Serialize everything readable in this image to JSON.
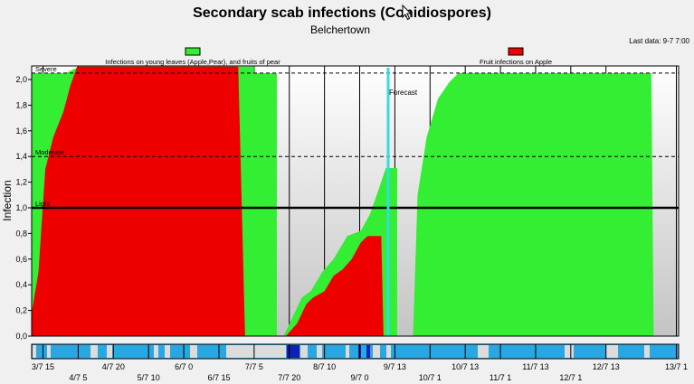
{
  "chart_data": {
    "type": "area",
    "title": "Secondary scab infections (Conidiospores)",
    "subtitle": "Belchertown",
    "last_data": "Last data: 9-7 7:00",
    "ylabel": "Infection",
    "ylim": [
      0,
      2.1
    ],
    "y_ticks": [
      "0,0",
      "0,2",
      "0,4",
      "0,6",
      "0,8",
      "1,0",
      "1,2",
      "1,4",
      "1,6",
      "1,8",
      "2,0"
    ],
    "x_ticks_top": [
      "3/7 15",
      "4/7 20",
      "6/7 0",
      "7/7 5",
      "8/7 10",
      "9/7 13",
      "10/7 13",
      "11/7 13",
      "12/7 13",
      "13/7 1"
    ],
    "x_ticks_bottom": [
      "4/7 5",
      "5/7 10",
      "6/7 15",
      "7/7 20",
      "9/7 0",
      "10/7 1",
      "11/7 1",
      "12/7 1"
    ],
    "thresholds": [
      {
        "label": "Severe",
        "value": 2.05,
        "style": "dashed"
      },
      {
        "label": "Moderate",
        "value": 1.4,
        "style": "dashed"
      },
      {
        "label": "Light",
        "value": 1.0,
        "style": "solid"
      }
    ],
    "forecast_label": "Forecast",
    "legend": [
      {
        "label": "Infections on young leaves (Apple,Pear), and fruits of pear",
        "color": "#33ee33"
      },
      {
        "label": "Fruit infections on Apple",
        "color": "#ee0000"
      }
    ],
    "series": [
      {
        "name": "Infections on young leaves (Apple,Pear), and fruits of pear",
        "color": "#33ee33",
        "segments": [
          [
            [
              0.0,
              2.05
            ],
            [
              1.5,
              2.05
            ],
            [
              2.1,
              2.1
            ],
            [
              9.8,
              2.1
            ],
            [
              9.8,
              2.05
            ],
            [
              10.8,
              2.05
            ],
            [
              10.8,
              0.0
            ]
          ],
          [
            [
              11.1,
              0.0
            ],
            [
              11.5,
              0.15
            ],
            [
              11.9,
              0.3
            ],
            [
              12.3,
              0.35
            ],
            [
              12.8,
              0.5
            ],
            [
              13.3,
              0.6
            ],
            [
              13.9,
              0.78
            ],
            [
              14.5,
              0.82
            ],
            [
              14.9,
              0.95
            ],
            [
              15.3,
              1.15
            ],
            [
              15.6,
              1.31
            ],
            [
              16.1,
              1.31
            ]
          ],
          [
            [
              16.8,
              0.0
            ],
            [
              17.0,
              1.1
            ],
            [
              17.4,
              1.55
            ],
            [
              17.9,
              1.85
            ],
            [
              18.4,
              1.98
            ],
            [
              18.8,
              2.05
            ],
            [
              27.3,
              2.05
            ],
            [
              27.4,
              0.0
            ]
          ]
        ]
      },
      {
        "name": "Fruit infections on Apple",
        "color": "#ee0000",
        "segments": [
          [
            [
              0.0,
              0.18
            ],
            [
              0.3,
              0.5
            ],
            [
              0.6,
              1.3
            ],
            [
              0.95,
              1.55
            ],
            [
              1.4,
              1.75
            ],
            [
              1.7,
              1.95
            ],
            [
              2.0,
              2.1
            ],
            [
              9.1,
              2.1
            ],
            [
              9.4,
              0.0
            ]
          ],
          [
            [
              11.2,
              0.0
            ],
            [
              11.7,
              0.1
            ],
            [
              12.1,
              0.25
            ],
            [
              12.4,
              0.3
            ],
            [
              12.9,
              0.35
            ],
            [
              13.3,
              0.47
            ],
            [
              13.7,
              0.52
            ],
            [
              14.1,
              0.6
            ],
            [
              14.5,
              0.73
            ],
            [
              14.8,
              0.78
            ],
            [
              15.4,
              0.78
            ],
            [
              15.5,
              0.0
            ]
          ]
        ]
      }
    ]
  }
}
